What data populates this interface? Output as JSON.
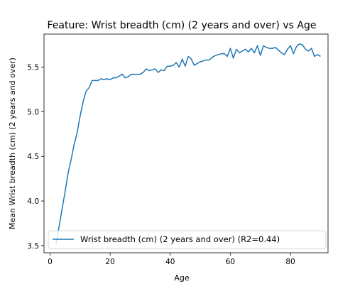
{
  "chart_data": {
    "type": "line",
    "title": "Feature: Wrist breadth (cm) (2 years and over) vs Age",
    "xlabel": "Age",
    "ylabel": "Mean Wrist breadth (cm) (2 years and over)",
    "xlim": [
      -2,
      92.5
    ],
    "ylim": [
      3.42,
      5.87
    ],
    "xticks": [
      0,
      20,
      40,
      60,
      80
    ],
    "yticks": [
      3.5,
      4.0,
      4.5,
      5.0,
      5.5
    ],
    "grid": false,
    "legend_position": "lower-left",
    "series": [
      {
        "name": "Wrist breadth (cm) (2 years and over) (R2=0.44)",
        "color": "#1f77b4",
        "x": [
          2,
          3,
          4,
          5,
          6,
          7,
          8,
          9,
          10,
          11,
          12,
          13,
          14,
          15,
          16,
          17,
          18,
          19,
          20,
          21,
          22,
          23,
          24,
          25,
          26,
          27,
          28,
          29,
          30,
          31,
          32,
          33,
          34,
          35,
          36,
          37,
          38,
          39,
          40,
          41,
          42,
          43,
          44,
          45,
          46,
          47,
          48,
          49,
          50,
          51,
          52,
          53,
          54,
          55,
          56,
          57,
          58,
          59,
          60,
          61,
          62,
          63,
          64,
          65,
          66,
          67,
          68,
          69,
          70,
          71,
          72,
          73,
          74,
          75,
          76,
          77,
          78,
          79,
          80,
          81,
          82,
          83,
          84,
          85,
          86,
          87,
          88,
          89,
          90
        ],
        "y": [
          3.52,
          3.71,
          3.91,
          4.1,
          4.31,
          4.46,
          4.63,
          4.76,
          4.95,
          5.11,
          5.23,
          5.27,
          5.35,
          5.35,
          5.35,
          5.37,
          5.36,
          5.37,
          5.36,
          5.38,
          5.38,
          5.4,
          5.42,
          5.38,
          5.39,
          5.42,
          5.42,
          5.42,
          5.42,
          5.44,
          5.48,
          5.46,
          5.47,
          5.48,
          5.44,
          5.47,
          5.46,
          5.51,
          5.51,
          5.52,
          5.55,
          5.5,
          5.59,
          5.51,
          5.62,
          5.59,
          5.52,
          5.54,
          5.56,
          5.57,
          5.58,
          5.58,
          5.61,
          5.63,
          5.64,
          5.65,
          5.65,
          5.62,
          5.71,
          5.6,
          5.7,
          5.66,
          5.68,
          5.7,
          5.67,
          5.71,
          5.66,
          5.74,
          5.63,
          5.74,
          5.72,
          5.71,
          5.71,
          5.72,
          5.69,
          5.66,
          5.64,
          5.7,
          5.74,
          5.65,
          5.73,
          5.76,
          5.75,
          5.7,
          5.68,
          5.71,
          5.62,
          5.64,
          5.62
        ]
      }
    ]
  }
}
